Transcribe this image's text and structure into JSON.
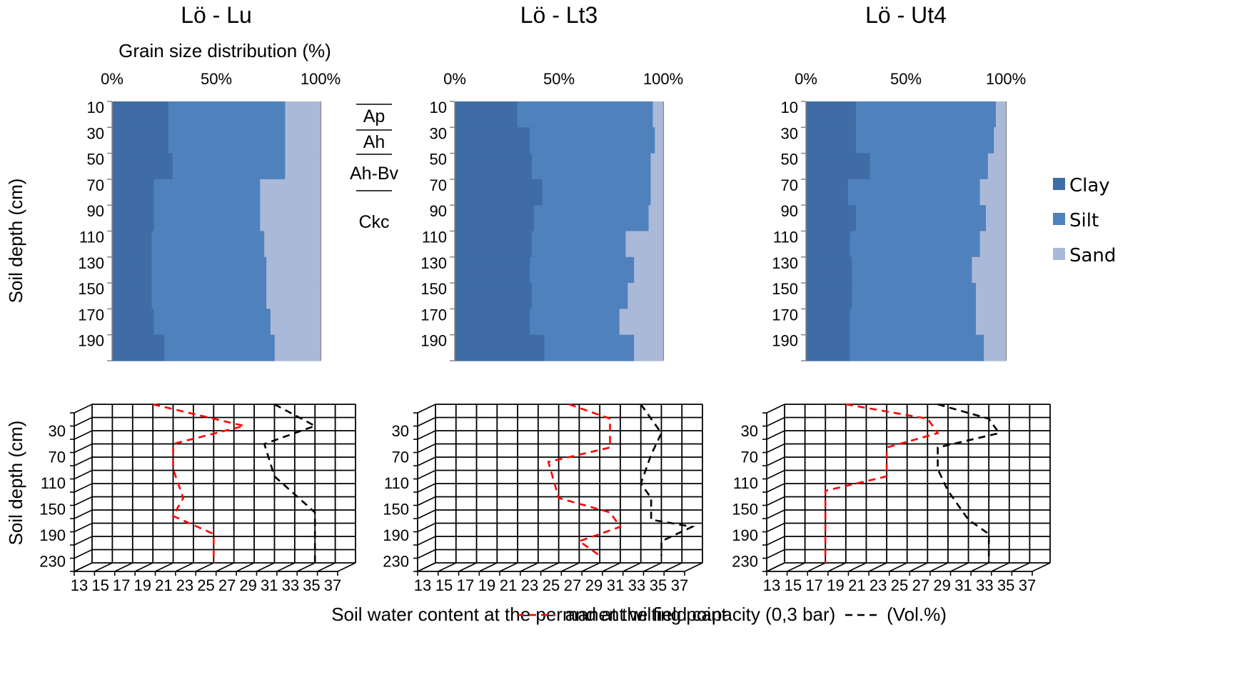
{
  "grain_axis_title": "Grain size distribution (%)",
  "y_axis_title": "Soil depth (cm)",
  "bottom_caption": "Soil water content at the permanent wilting point – – – and at the field capacity (0,3 bar) – – – (Vol.%)",
  "horizons": [
    "Ap",
    "Ah",
    "Ah-Bv",
    "Ckc"
  ],
  "colors": {
    "clay": "#3f6ca4",
    "silt": "#4f81bd",
    "sand": "#aab9d8",
    "wilting": "#ff0000",
    "field": "#000000"
  },
  "chart_data": [
    {
      "type": "bar",
      "stacked": "horizontal",
      "title": "Lö - Lu",
      "xlabel": "Grain size distribution (%)",
      "ylabel": "Soil depth (cm)",
      "xticks": [
        "0%",
        "50%",
        "100%"
      ],
      "categories": [
        "10",
        "30",
        "50",
        "70",
        "90",
        "110",
        "130",
        "150",
        "170",
        "190"
      ],
      "series": [
        {
          "name": "Clay",
          "values": [
            27,
            27,
            29,
            20,
            20,
            19,
            19,
            19,
            20,
            25
          ]
        },
        {
          "name": "Silt",
          "values": [
            56,
            56,
            54,
            51,
            51,
            54,
            55,
            55,
            56,
            53
          ]
        },
        {
          "name": "Sand",
          "values": [
            17,
            17,
            17,
            29,
            29,
            27,
            26,
            26,
            24,
            22
          ]
        }
      ]
    },
    {
      "type": "bar",
      "stacked": "horizontal",
      "title": "Lö - Lt3",
      "xticks": [
        "0%",
        "50%",
        "100%"
      ],
      "categories": [
        "10",
        "30",
        "50",
        "70",
        "90",
        "110",
        "130",
        "150",
        "170",
        "190"
      ],
      "series": [
        {
          "name": "Clay",
          "values": [
            30,
            36,
            37,
            42,
            38,
            37,
            36,
            37,
            36,
            43
          ]
        },
        {
          "name": "Silt",
          "values": [
            65,
            60,
            57,
            52,
            55,
            45,
            50,
            46,
            43,
            43
          ]
        },
        {
          "name": "Sand",
          "values": [
            5,
            4,
            6,
            6,
            7,
            18,
            14,
            17,
            21,
            14
          ]
        }
      ]
    },
    {
      "type": "bar",
      "stacked": "horizontal",
      "title": "Lö - Ut4",
      "xticks": [
        "0%",
        "50%",
        "100%"
      ],
      "categories": [
        "10",
        "30",
        "50",
        "70",
        "90",
        "110",
        "130",
        "150",
        "170",
        "190"
      ],
      "series": [
        {
          "name": "Clay",
          "values": [
            25,
            25,
            32,
            21,
            25,
            22,
            23,
            23,
            22,
            22
          ]
        },
        {
          "name": "Silt",
          "values": [
            70,
            69,
            59,
            66,
            65,
            65,
            60,
            62,
            63,
            67
          ]
        },
        {
          "name": "Sand",
          "values": [
            5,
            6,
            9,
            13,
            10,
            13,
            17,
            15,
            15,
            11
          ]
        }
      ],
      "legend": [
        "Clay",
        "Silt",
        "Sand"
      ]
    },
    {
      "type": "line",
      "ylabel": "Soil depth (cm)",
      "yticks": [
        "30",
        "70",
        "110",
        "150",
        "190",
        "230"
      ],
      "xticks": [
        "13",
        "15",
        "17",
        "19",
        "21",
        "23",
        "25",
        "27",
        "29",
        "31",
        "33",
        "35",
        "37"
      ],
      "series": [
        {
          "name": "permanent wilting point",
          "x": [
            19,
            28,
            21,
            21,
            22,
            21,
            25,
            25
          ],
          "y": [
            10,
            40,
            65,
            100,
            140,
            165,
            190,
            230
          ]
        },
        {
          "name": "field capacity",
          "x": [
            31,
            35,
            30,
            31,
            35,
            35,
            35
          ],
          "y": [
            10,
            40,
            65,
            110,
            160,
            190,
            230
          ]
        }
      ]
    },
    {
      "type": "line",
      "yticks": [
        "30",
        "70",
        "110",
        "150",
        "190",
        "230"
      ],
      "xticks": [
        "13",
        "15",
        "17",
        "19",
        "21",
        "23",
        "25",
        "27",
        "29",
        "31",
        "33",
        "35",
        "37"
      ],
      "series": [
        {
          "name": "permanent wilting point",
          "x": [
            26,
            30,
            30,
            24,
            25,
            30,
            31,
            27,
            29
          ],
          "y": [
            10,
            30,
            70,
            90,
            140,
            160,
            180,
            200,
            220
          ]
        },
        {
          "name": "field capacity",
          "x": [
            33,
            34,
            35,
            34,
            33,
            34,
            34,
            38,
            35,
            35
          ],
          "y": [
            10,
            30,
            50,
            80,
            120,
            140,
            170,
            180,
            200,
            220
          ]
        }
      ]
    },
    {
      "type": "line",
      "yticks": [
        "30",
        "70",
        "110",
        "150",
        "190",
        "230"
      ],
      "xticks": [
        "13",
        "15",
        "17",
        "19",
        "21",
        "23",
        "25",
        "27",
        "29",
        "31",
        "33",
        "35",
        "37"
      ],
      "series": [
        {
          "name": "permanent wilting point",
          "x": [
            19,
            27,
            28,
            23,
            23,
            17,
            17,
            17
          ],
          "y": [
            10,
            30,
            50,
            70,
            110,
            130,
            190,
            230
          ]
        },
        {
          "name": "field capacity",
          "x": [
            28,
            33,
            34,
            28,
            28,
            29,
            31,
            33,
            33
          ],
          "y": [
            10,
            30,
            50,
            70,
            100,
            130,
            170,
            190,
            230
          ]
        }
      ]
    }
  ]
}
